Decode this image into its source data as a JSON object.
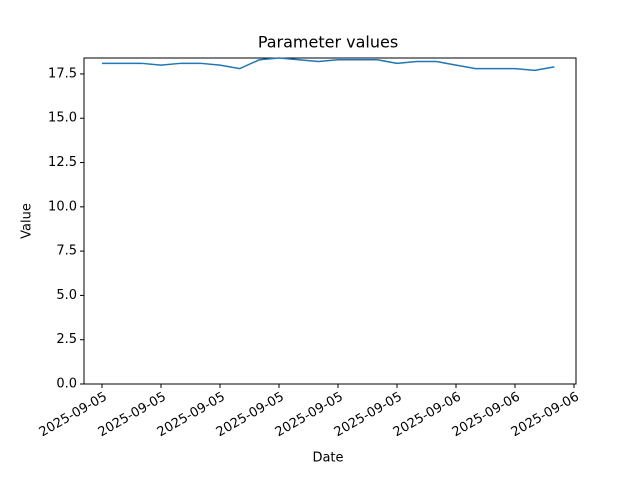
{
  "chart_data": {
    "type": "line",
    "title": "Parameter values",
    "x_label": "Date",
    "y_label": "Value",
    "categories": [
      "2025-09-05",
      null,
      null,
      "2025-09-05",
      null,
      null,
      "2025-09-05",
      null,
      null,
      "2025-09-05",
      null,
      null,
      "2025-09-05",
      null,
      null,
      "2025-09-05",
      null,
      null,
      "2025-09-06",
      null,
      null,
      "2025-09-06",
      null,
      null,
      "2025-09-06"
    ],
    "series": [
      {
        "name": "Value",
        "color": "#1f77b4",
        "values": [
          18.1,
          18.1,
          18.1,
          18.0,
          18.1,
          18.1,
          18.0,
          17.8,
          18.3,
          18.4,
          18.3,
          18.2,
          18.3,
          18.3,
          18.3,
          18.1,
          18.2,
          18.2,
          18.0,
          17.8,
          17.8,
          17.8,
          17.7,
          17.9,
          null
        ]
      }
    ],
    "ylim": [
      0,
      18.4
    ],
    "yticks": [
      {
        "value": 0,
        "label": "0.0"
      },
      2.5,
      {
        "value": 5,
        "label": "5.0"
      },
      7.5,
      {
        "value": 10,
        "label": "10.0"
      },
      12.5,
      {
        "value": 15,
        "label": "15.0"
      },
      17.5
    ],
    "grid": false
  }
}
